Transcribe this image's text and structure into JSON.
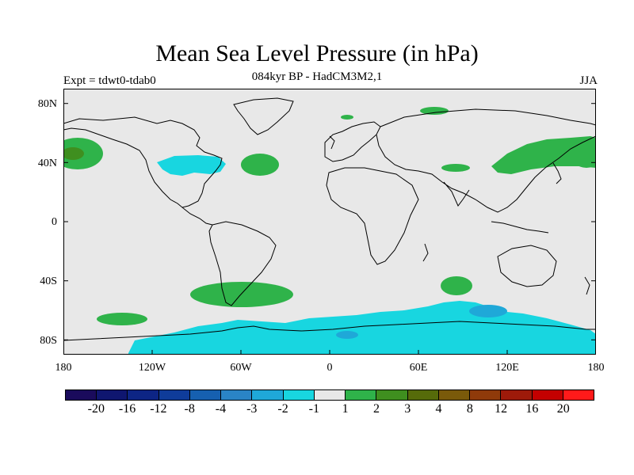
{
  "title": "Mean Sea Level Pressure (in hPa)",
  "subtitle": "084kyr BP - HadCM3M2,1",
  "experiment_label": "Expt = tdwt0-tdab0",
  "season_label": "JJA",
  "lat_ticks": [
    "80N",
    "40N",
    "0",
    "40S",
    "80S"
  ],
  "lon_ticks": [
    "180",
    "120W",
    "60W",
    "0",
    "60E",
    "120E",
    "180"
  ],
  "colorbar": {
    "labels": [
      "-20",
      "-16",
      "-12",
      "-8",
      "-4",
      "-3",
      "-2",
      "-1",
      "1",
      "2",
      "3",
      "4",
      "8",
      "12",
      "16",
      "20"
    ],
    "colors": [
      "#1a0b5c",
      "#0f1670",
      "#0d2585",
      "#0f3c9a",
      "#1660b0",
      "#2a84c6",
      "#1fa8d8",
      "#18d6e0",
      "#e8e8e8",
      "#2fb34a",
      "#3f8f1f",
      "#566b0a",
      "#7a5a0a",
      "#8f3a0a",
      "#9e1a0a",
      "#c40000",
      "#ff1a1a"
    ]
  },
  "map": {
    "ocean_color": "#e8e8e8",
    "coast_color": "#000000",
    "positive_1_2_color": "#2fb34a",
    "positive_2_3_color": "#3f8f1f",
    "negative_1_2_color": "#18d6e0",
    "negative_2_3_color": "#1fa8d8"
  }
}
